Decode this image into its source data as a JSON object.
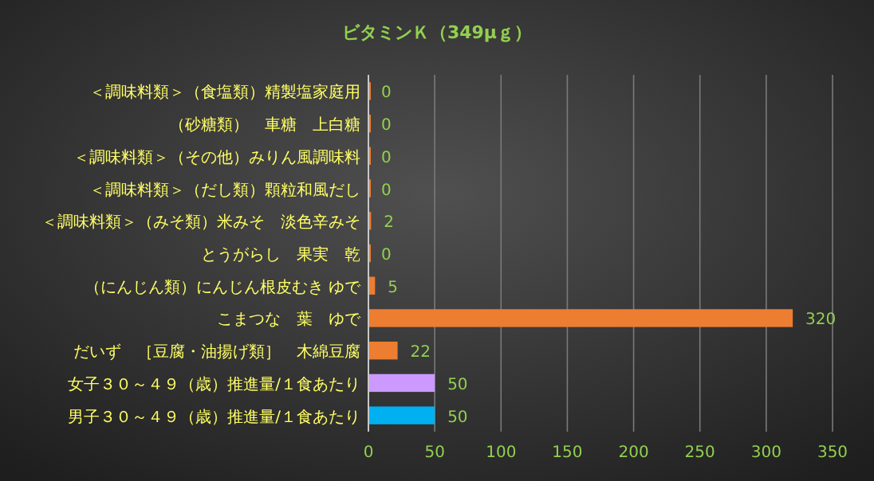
{
  "chart_data": {
    "type": "bar",
    "orientation": "horizontal",
    "title": "ビタミンＫ（349μｇ）",
    "categories": [
      "＜調味料類＞（食塩類）精製塩家庭用",
      "（砂糖類）　車糖　上白糖",
      "＜調味料類＞（その他）みりん風調味料",
      "＜調味料類＞（だし類）顆粒和風だし",
      "＜調味料類＞（みそ類）米みそ　淡色辛みそ",
      "とうがらし　果実　乾",
      "（にんじん類）にんじん根皮むき ゆで",
      "こまつな　葉　ゆで",
      "だいず　［豆腐・油揚げ類］　木綿豆腐",
      "女子３０～４９（歳）推進量/１食あたり",
      "男子３０～４９（歳）推進量/１食あたり"
    ],
    "values": [
      0,
      0,
      0,
      0,
      2,
      0,
      5,
      320,
      22,
      50,
      50
    ],
    "colors": [
      "#ed7d31",
      "#ed7d31",
      "#ed7d31",
      "#ed7d31",
      "#ed7d31",
      "#ed7d31",
      "#ed7d31",
      "#ed7d31",
      "#ed7d31",
      "#cc99ff",
      "#00b0f0"
    ],
    "xlim": [
      0,
      350
    ],
    "xticks": [
      0,
      50,
      100,
      150,
      200,
      250,
      300,
      350
    ],
    "grid": "x",
    "data_labels": true
  }
}
